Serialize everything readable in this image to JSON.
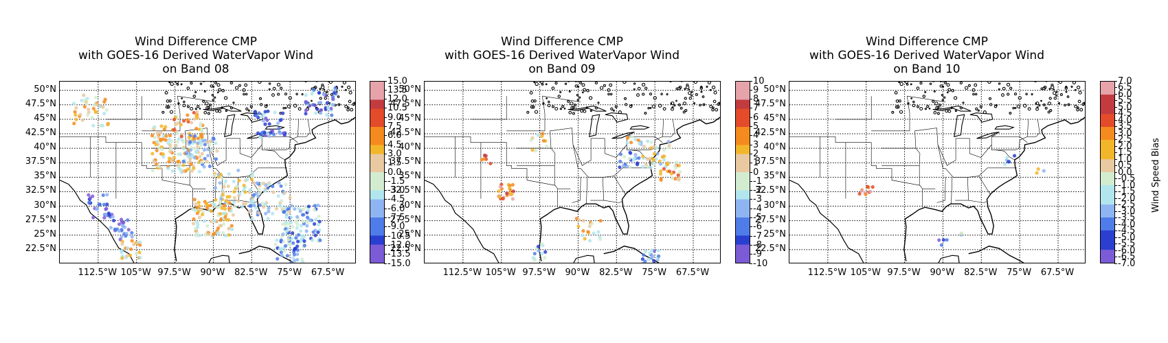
{
  "title_lines": [
    "Wind Difference CMP",
    "with GOES-16 Derived WaterVapor Wind"
  ],
  "panels": [
    {
      "subtitle": "on Band 08",
      "cbar_ticks": [
        "15.0",
        "13.5",
        "12.0",
        "10.5",
        "9.0",
        "7.5",
        "6.0",
        "4.5",
        "3.0",
        "1.5",
        "0.0",
        "-1.5",
        "-3.0",
        "-4.5",
        "-6.0",
        "-7.5",
        "-9.0",
        "-10.5",
        "-12.0",
        "-13.5",
        "-15.0"
      ]
    },
    {
      "subtitle": "on Band 09",
      "cbar_ticks": [
        "10",
        "9",
        "8",
        "7",
        "6",
        "5",
        "4",
        "3",
        "2",
        "1",
        "0",
        "-1",
        "-2",
        "-3",
        "-4",
        "-5",
        "-6",
        "-7",
        "-8",
        "-9",
        "-10"
      ]
    },
    {
      "subtitle": "on Band 10",
      "cbar_ticks": [
        "7.0",
        "6.5",
        "6.0",
        "5.5",
        "5.0",
        "4.5",
        "4.0",
        "3.5",
        "3.0",
        "2.5",
        "2.0",
        "1.5",
        "1.0",
        "0.5",
        "0.0",
        "-0.5",
        "-1.0",
        "-1.5",
        "-2.0",
        "-2.5",
        "-3.0",
        "-3.5",
        "-4.0",
        "-4.5",
        "-5.0",
        "-5.5",
        "-6.0",
        "-6.5",
        "-7.0"
      ],
      "cbar_label": "Wind Speed Bias"
    }
  ],
  "lat_labels": [
    "50°N",
    "47.5°N",
    "45°N",
    "42.5°N",
    "40°N",
    "37.5°N",
    "35°N",
    "32.5°N",
    "30°N",
    "27.5°N",
    "25°N",
    "22.5°N"
  ],
  "lon_labels": [
    "112.5°W",
    "105°W",
    "97.5°W",
    "90°W",
    "82.5°W",
    "75°W",
    "67.5°W"
  ],
  "colormap": [
    "#7b5cd6",
    "#2a3fd0",
    "#4f7ce8",
    "#8fb4f2",
    "#b2e6ee",
    "#d3ecd0",
    "#e8c9a1",
    "#f2b62a",
    "#f58a1f",
    "#e34b2a",
    "#c23b3f",
    "#e6a3aa"
  ],
  "map_extent": {
    "lon": [
      -120,
      -62
    ],
    "lat": [
      20,
      51.5
    ]
  },
  "chart_data": [
    {
      "type": "scatter",
      "subtitle": "on Band 08",
      "value_range": [
        -15,
        15
      ],
      "density": "high"
    },
    {
      "type": "scatter",
      "subtitle": "on Band 09",
      "value_range": [
        -10,
        10
      ],
      "density": "medium"
    },
    {
      "type": "scatter",
      "subtitle": "on Band 10",
      "value_range": [
        -7,
        7
      ],
      "density": "low"
    }
  ]
}
